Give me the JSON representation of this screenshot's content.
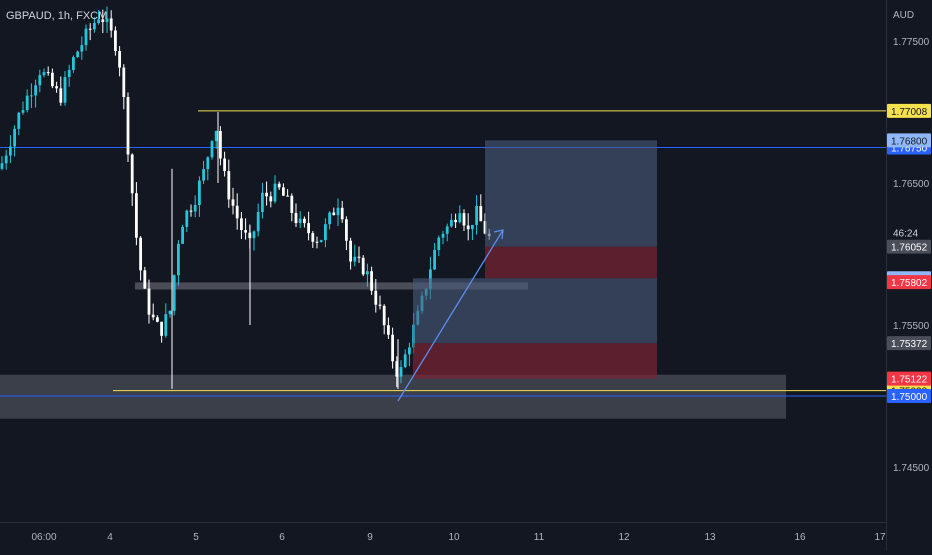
{
  "header": {
    "legend": "GBPAUD, 1h, FXCM",
    "currency": "AUD"
  },
  "colors": {
    "background": "#131722",
    "bull": "#26c6da",
    "bear": "#ffffff",
    "yellow_line": "#f5e04e",
    "blue_line": "#2962ff",
    "zone_gray": "#5d606b",
    "target_box": "#4a5b7c",
    "stop_box": "#7a2333",
    "arrow": "#5a8dee"
  },
  "chart_data": {
    "type": "candlestick",
    "symbol": "GBPAUD",
    "interval": "1h",
    "source": "FXCM",
    "y_range": [
      1.743,
      1.777
    ],
    "price_ticks": [
      "1.77500",
      "1.76500",
      "1.75500",
      "1.74500"
    ],
    "price_tick_values": [
      1.775,
      1.765,
      1.755,
      1.745
    ],
    "time_labels": [
      "06:00",
      "4",
      "5",
      "6",
      "9",
      "10",
      "11",
      "12",
      "13",
      "16",
      "17"
    ],
    "horizontal_levels": [
      {
        "price": 1.77008,
        "label": "1.77008",
        "color": "#f5e04e",
        "text_color": "#131722"
      },
      {
        "price": 1.7675,
        "label": "1.76750",
        "color": "#2962ff",
        "text_color": "#ffffff"
      },
      {
        "price": 1.75038,
        "label": "1.75038",
        "color": "#f5e04e",
        "text_color": "#131722"
      },
      {
        "price": 1.75,
        "label": "1.75000",
        "color": "#2962ff",
        "text_color": "#ffffff"
      }
    ],
    "price_badges": [
      {
        "price": 1.768,
        "label": "1.76800",
        "bg": "#90b8f8",
        "fg": "#131722"
      },
      {
        "price": 1.76052,
        "label": "1.76052",
        "bg": "#4a4e59",
        "fg": "#ffffff",
        "extra": "46:24"
      },
      {
        "price": 1.75829,
        "label": "1.75829",
        "bg": "#90b8f8",
        "fg": "#131722"
      },
      {
        "price": 1.75802,
        "label": "1.75802",
        "bg": "#f23645",
        "fg": "#ffffff"
      },
      {
        "price": 1.75372,
        "label": "1.75372",
        "bg": "#4a4e59",
        "fg": "#ffffff"
      },
      {
        "price": 1.75122,
        "label": "1.75122",
        "bg": "#f23645",
        "fg": "#ffffff"
      }
    ],
    "zones": [
      {
        "name": "support-zone",
        "top": 1.7515,
        "bottom": 1.7484
      },
      {
        "name": "minor-zone",
        "top": 1.758,
        "bottom": 1.7575
      }
    ],
    "positions": [
      {
        "name": "long-position-1",
        "target": 1.768,
        "entry": 1.76052,
        "stop": 1.75829
      },
      {
        "name": "long-position-2",
        "target": 1.75829,
        "entry": 1.75372,
        "stop": 1.75122
      }
    ]
  }
}
